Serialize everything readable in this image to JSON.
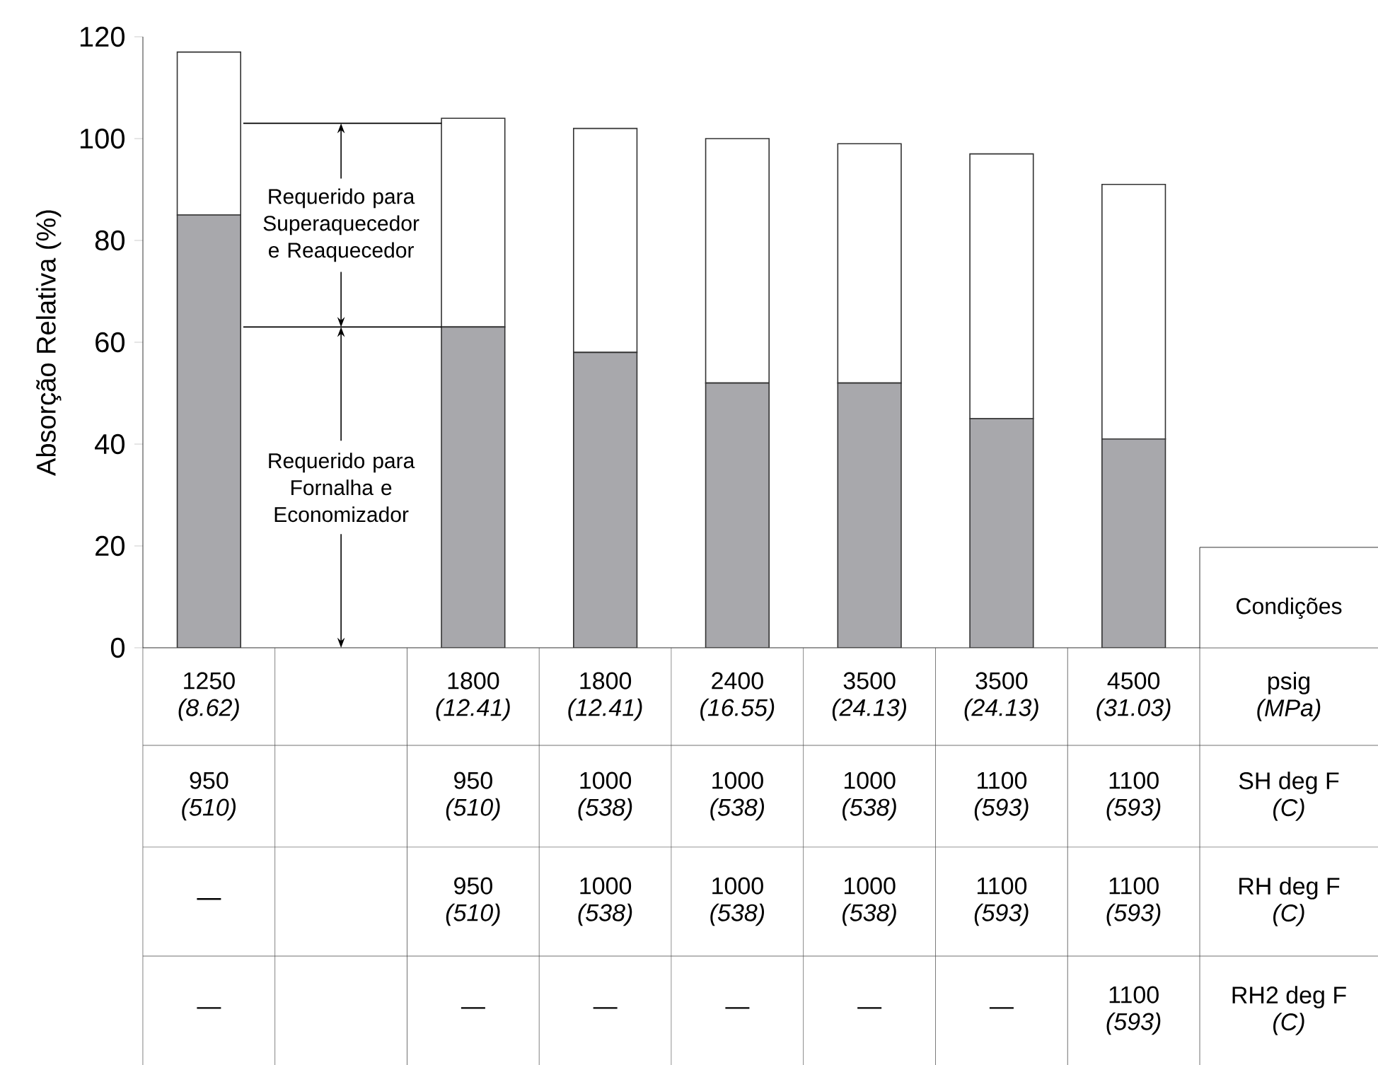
{
  "chart_data": {
    "type": "bar",
    "stacked": true,
    "ylabel": "Absorção Relativa (%)",
    "categories": [
      "1250 *(8.62)*",
      null,
      "1800 *(12.41)*",
      "1800 *(12.41)*",
      "2400 *(16.55)*",
      "3500 *(24.13)*",
      "3500 *(24.13)*",
      "4500 *(31.03)*"
    ],
    "series": [
      {
        "color": "#a8a8ac",
        "values": [
          85,
          null,
          63,
          58,
          52,
          52,
          45,
          41
        ]
      },
      {
        "color": "#ffffff",
        "values": [
          32,
          null,
          41,
          44,
          48,
          47,
          52,
          50
        ]
      }
    ],
    "ylim": [
      0,
      120
    ],
    "yticks": [
      0,
      20,
      40,
      60,
      80,
      100,
      120
    ],
    "ref_lines": [
      {
        "axis": "y",
        "value": 103
      },
      {
        "axis": "y",
        "value": 63
      }
    ],
    "annotations": [
      "Condições",
      "psig",
      "(MPa)",
      "SH deg  F",
      "(C)",
      "RH deg F",
      "(C)",
      "RH2 deg F",
      "(C)",
      "950 *(510)*",
      "950 *(510)*",
      "1000 *(538)*",
      "1000 *(538)*",
      "1000 *(538)*",
      "1100 *(593)*",
      "1100 *(593)*",
      "—",
      "950 *(510)*",
      "1000 *(538)*",
      "1000 *(538)*",
      "1000 *(538)*",
      "1100 *(593)*",
      "1100 *(593)*",
      "—",
      "—",
      "—",
      "—",
      "—",
      "—",
      "1100 *(593)*",
      "Requerido para Superaquecedor e Reaquecedor",
      "Requerido para Fornalha e Economizador"
    ]
  }
}
